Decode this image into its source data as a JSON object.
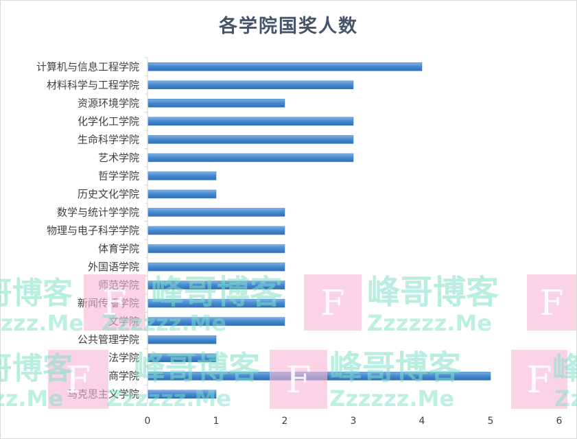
{
  "chart_data": {
    "type": "bar",
    "orientation": "horizontal",
    "title": "各学院国奖人数",
    "categories": [
      "计算机与信息工程学院",
      "材料科学与工程学院",
      "资源环境学院",
      "化学化工学院",
      "生命科学学院",
      "艺术学院",
      "哲学学院",
      "历史文化学院",
      "数学与统计学学院",
      "物理与电子科学学院",
      "体育学院",
      "外国语学院",
      "师范学院",
      "新闻传播学院",
      "文学院",
      "公共管理学院",
      "法学院",
      "商学院",
      "马克思主义学院"
    ],
    "values": [
      4,
      3,
      2,
      3,
      3,
      3,
      1,
      1,
      2,
      2,
      2,
      2,
      2,
      2,
      2,
      1,
      1,
      5,
      1
    ],
    "xlim": [
      0,
      6
    ],
    "xticks": [
      "0",
      "1",
      "2",
      "3",
      "4",
      "5",
      "6"
    ],
    "xlabel": "",
    "ylabel": "",
    "grid": false,
    "legend": "none",
    "bar_color": "#4a8bd0"
  },
  "watermark": {
    "brand": "峰哥博客",
    "site": "Zzzzzz.Me",
    "logo_letter": "F"
  }
}
